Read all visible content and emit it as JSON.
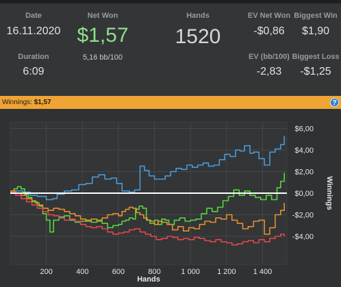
{
  "summary": {
    "date_label": "Date",
    "date_value": "16.11.2020",
    "duration_label": "Duration",
    "duration_value": "6:09",
    "net_won_label": "Net Won",
    "net_won_value": "$1,57",
    "bb_per_100": "5,16 bb/100",
    "hands_label": "Hands",
    "hands_value": "1520",
    "ev_net_won_label": "EV Net Won",
    "ev_net_won_value": "-$0,86",
    "biggest_win_label": "Biggest Win",
    "biggest_win_value": "$1,90",
    "ev_bb_label": "EV (bb/100)",
    "ev_bb_value": "-2,83",
    "biggest_loss_label": "Biggest Loss",
    "biggest_loss_value": "-$1,25"
  },
  "banner": {
    "label": "Winnings:",
    "amount": "$1,57",
    "help_icon": "?"
  },
  "colors": {
    "blue": "#4a9ad8",
    "green": "#58d63e",
    "orange": "#e8902e",
    "red": "#e2484a",
    "zero_line": "#ffffff"
  },
  "chart_data": {
    "type": "line",
    "xlabel": "Hands",
    "ylabel": "Winnings",
    "xlim": [
      0,
      1535
    ],
    "ylim": [
      -6.6,
      6.6
    ],
    "x_ticks": [
      200,
      400,
      600,
      800,
      1000,
      1200,
      1400
    ],
    "x_tick_labels": [
      "200",
      "400",
      "600",
      "800",
      "1 000",
      "1 200",
      "1 400"
    ],
    "y_ticks": [
      6,
      4,
      2,
      0,
      -2,
      -4
    ],
    "y_tick_labels": [
      "$6,00",
      "$4,00",
      "$2,00",
      "$0,00",
      "-$2,00",
      "-$4,00"
    ],
    "grid": true,
    "legend": "none",
    "series": [
      {
        "color_key": "blue",
        "points": [
          [
            0,
            0.1
          ],
          [
            30,
            0.2
          ],
          [
            70,
            0.1
          ],
          [
            110,
            -0.2
          ],
          [
            150,
            -0.3
          ],
          [
            200,
            -0.6
          ],
          [
            235,
            -0.5
          ],
          [
            260,
            -0.1
          ],
          [
            300,
            0.2
          ],
          [
            340,
            0.3
          ],
          [
            380,
            0.8
          ],
          [
            420,
            0.9
          ],
          [
            455,
            1.5
          ],
          [
            490,
            1.7
          ],
          [
            525,
            1.3
          ],
          [
            560,
            1.4
          ],
          [
            590,
            0.9
          ],
          [
            620,
            0.2
          ],
          [
            660,
            0.1
          ],
          [
            690,
            0.3
          ],
          [
            720,
            2.5
          ],
          [
            745,
            2.1
          ],
          [
            770,
            1.6
          ],
          [
            800,
            1.3
          ],
          [
            830,
            1.3
          ],
          [
            860,
            1.6
          ],
          [
            890,
            2.0
          ],
          [
            920,
            2.3
          ],
          [
            950,
            2.2
          ],
          [
            980,
            2.6
          ],
          [
            1010,
            2.4
          ],
          [
            1040,
            2.6
          ],
          [
            1070,
            2.8
          ],
          [
            1100,
            2.5
          ],
          [
            1130,
            2.6
          ],
          [
            1160,
            3.1
          ],
          [
            1190,
            3.6
          ],
          [
            1220,
            3.4
          ],
          [
            1250,
            4.0
          ],
          [
            1275,
            3.9
          ],
          [
            1300,
            4.4
          ],
          [
            1330,
            3.7
          ],
          [
            1350,
            3.8
          ],
          [
            1380,
            3.2
          ],
          [
            1410,
            2.6
          ],
          [
            1440,
            3.8
          ],
          [
            1470,
            4.1
          ],
          [
            1500,
            4.5
          ],
          [
            1520,
            5.3
          ]
        ]
      },
      {
        "color_key": "green",
        "points": [
          [
            0,
            0.2
          ],
          [
            20,
            0.4
          ],
          [
            40,
            0.6
          ],
          [
            60,
            0.4
          ],
          [
            80,
            -0.1
          ],
          [
            100,
            -0.4
          ],
          [
            120,
            -0.7
          ],
          [
            140,
            -0.9
          ],
          [
            160,
            -1.2
          ],
          [
            180,
            -1.9
          ],
          [
            200,
            -2.5
          ],
          [
            220,
            -3.6
          ],
          [
            240,
            -2.5
          ],
          [
            270,
            -2.2
          ],
          [
            300,
            -2.1
          ],
          [
            330,
            -2.5
          ],
          [
            360,
            -2.7
          ],
          [
            390,
            -2.6
          ],
          [
            420,
            -2.5
          ],
          [
            450,
            -2.7
          ],
          [
            480,
            -2.6
          ],
          [
            510,
            -2.8
          ],
          [
            540,
            -3.2
          ],
          [
            570,
            -3.0
          ],
          [
            600,
            -2.9
          ],
          [
            620,
            -2.6
          ],
          [
            640,
            -2.5
          ],
          [
            660,
            -2.3
          ],
          [
            680,
            -2.4
          ],
          [
            695,
            -1.5
          ],
          [
            715,
            -1.2
          ],
          [
            735,
            -1.4
          ],
          [
            755,
            -2.5
          ],
          [
            775,
            -2.8
          ],
          [
            800,
            -2.5
          ],
          [
            820,
            -2.9
          ],
          [
            840,
            -2.4
          ],
          [
            860,
            -2.5
          ],
          [
            880,
            -2.9
          ],
          [
            910,
            -2.5
          ],
          [
            940,
            -2.3
          ],
          [
            970,
            -2.6
          ],
          [
            1000,
            -2.5
          ],
          [
            1030,
            -2.4
          ],
          [
            1060,
            -1.9
          ],
          [
            1090,
            -1.4
          ],
          [
            1120,
            -1.7
          ],
          [
            1150,
            -1.3
          ],
          [
            1180,
            -0.7
          ],
          [
            1210,
            -0.3
          ],
          [
            1240,
            0.3
          ],
          [
            1270,
            -0.2
          ],
          [
            1300,
            0.2
          ],
          [
            1330,
            -0.2
          ],
          [
            1360,
            -0.4
          ],
          [
            1390,
            -0.6
          ],
          [
            1420,
            -0.2
          ],
          [
            1450,
            -0.6
          ],
          [
            1480,
            0.5
          ],
          [
            1500,
            1.1
          ],
          [
            1520,
            1.9
          ]
        ]
      },
      {
        "color_key": "orange",
        "points": [
          [
            0,
            0.2
          ],
          [
            30,
            0.0
          ],
          [
            60,
            -0.2
          ],
          [
            90,
            -0.5
          ],
          [
            120,
            -0.8
          ],
          [
            150,
            -1.1
          ],
          [
            180,
            -1.4
          ],
          [
            210,
            -1.6
          ],
          [
            240,
            -1.4
          ],
          [
            270,
            -1.5
          ],
          [
            300,
            -1.7
          ],
          [
            330,
            -1.9
          ],
          [
            360,
            -2.1
          ],
          [
            390,
            -2.4
          ],
          [
            420,
            -2.6
          ],
          [
            450,
            -2.4
          ],
          [
            480,
            -2.5
          ],
          [
            510,
            -2.3
          ],
          [
            540,
            -2.0
          ],
          [
            570,
            -1.9
          ],
          [
            600,
            -2.1
          ],
          [
            620,
            -1.7
          ],
          [
            640,
            -1.5
          ],
          [
            660,
            -1.3
          ],
          [
            680,
            -1.4
          ],
          [
            700,
            -1.8
          ],
          [
            720,
            -2.0
          ],
          [
            740,
            -2.3
          ],
          [
            760,
            -2.5
          ],
          [
            780,
            -2.6
          ],
          [
            800,
            -2.9
          ],
          [
            820,
            -2.6
          ],
          [
            845,
            -2.7
          ],
          [
            870,
            -2.9
          ],
          [
            900,
            -3.4
          ],
          [
            930,
            -3.1
          ],
          [
            960,
            -3.5
          ],
          [
            990,
            -3.2
          ],
          [
            1020,
            -3.3
          ],
          [
            1050,
            -2.9
          ],
          [
            1080,
            -2.6
          ],
          [
            1110,
            -2.7
          ],
          [
            1140,
            -2.3
          ],
          [
            1170,
            -2.4
          ],
          [
            1200,
            -2.0
          ],
          [
            1230,
            -2.5
          ],
          [
            1260,
            -2.8
          ],
          [
            1290,
            -3.3
          ],
          [
            1320,
            -3.1
          ],
          [
            1350,
            -2.6
          ],
          [
            1380,
            -2.5
          ],
          [
            1410,
            -3.8
          ],
          [
            1440,
            -3.2
          ],
          [
            1470,
            -2.0
          ],
          [
            1500,
            -1.6
          ],
          [
            1520,
            -0.9
          ]
        ]
      },
      {
        "color_key": "red",
        "points": [
          [
            0,
            0.1
          ],
          [
            30,
            -0.2
          ],
          [
            60,
            -0.5
          ],
          [
            90,
            -0.8
          ],
          [
            120,
            -1.1
          ],
          [
            150,
            -1.4
          ],
          [
            180,
            -1.7
          ],
          [
            210,
            -2.0
          ],
          [
            240,
            -2.1
          ],
          [
            270,
            -2.3
          ],
          [
            300,
            -2.5
          ],
          [
            330,
            -2.4
          ],
          [
            360,
            -2.6
          ],
          [
            390,
            -2.9
          ],
          [
            420,
            -3.1
          ],
          [
            450,
            -3.2
          ],
          [
            480,
            -3.1
          ],
          [
            510,
            -3.3
          ],
          [
            540,
            -3.6
          ],
          [
            570,
            -3.8
          ],
          [
            600,
            -3.7
          ],
          [
            630,
            -3.6
          ],
          [
            660,
            -3.4
          ],
          [
            690,
            -3.3
          ],
          [
            720,
            -3.6
          ],
          [
            750,
            -3.8
          ],
          [
            780,
            -4.0
          ],
          [
            810,
            -4.3
          ],
          [
            840,
            -4.2
          ],
          [
            870,
            -4.0
          ],
          [
            900,
            -4.1
          ],
          [
            930,
            -4.3
          ],
          [
            960,
            -4.2
          ],
          [
            990,
            -4.3
          ],
          [
            1020,
            -4.1
          ],
          [
            1050,
            -4.2
          ],
          [
            1080,
            -4.4
          ],
          [
            1110,
            -4.5
          ],
          [
            1140,
            -4.3
          ],
          [
            1170,
            -4.5
          ],
          [
            1200,
            -4.6
          ],
          [
            1230,
            -4.8
          ],
          [
            1260,
            -4.7
          ],
          [
            1290,
            -4.5
          ],
          [
            1320,
            -4.4
          ],
          [
            1350,
            -4.6
          ],
          [
            1380,
            -4.3
          ],
          [
            1410,
            -4.5
          ],
          [
            1440,
            -4.2
          ],
          [
            1470,
            -4.0
          ],
          [
            1500,
            -3.8
          ],
          [
            1520,
            -4.0
          ]
        ]
      }
    ]
  }
}
